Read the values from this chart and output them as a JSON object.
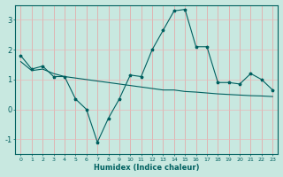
{
  "xlabel": "Humidex (Indice chaleur)",
  "ylabel": "",
  "bg_color": "#c8e8e0",
  "grid_color_v": "#e8a0a0",
  "grid_color_h": "#e8b8b8",
  "line_color": "#006060",
  "x_values": [
    0,
    1,
    2,
    3,
    4,
    5,
    6,
    7,
    8,
    9,
    10,
    11,
    12,
    13,
    14,
    15,
    16,
    17,
    18,
    19,
    20,
    21,
    22,
    23
  ],
  "line1_y": [
    1.8,
    1.35,
    1.45,
    1.1,
    1.1,
    0.35,
    0.0,
    -1.1,
    -0.3,
    0.35,
    1.15,
    1.1,
    2.0,
    2.65,
    3.3,
    3.35,
    2.1,
    2.1,
    0.9,
    0.9,
    0.85,
    1.2,
    1.0,
    0.65
  ],
  "line2_y": [
    1.6,
    1.3,
    1.35,
    1.2,
    1.1,
    1.05,
    1.0,
    0.95,
    0.9,
    0.85,
    0.8,
    0.75,
    0.7,
    0.65,
    0.65,
    0.6,
    0.58,
    0.55,
    0.52,
    0.5,
    0.48,
    0.46,
    0.45,
    0.43
  ],
  "ylim": [
    -1.5,
    3.5
  ],
  "xlim": [
    -0.5,
    23.5
  ],
  "yticks": [
    -1,
    0,
    1,
    2,
    3
  ],
  "xtick_labels": [
    "0",
    "1",
    "2",
    "3",
    "4",
    "5",
    "6",
    "7",
    "8",
    "9",
    "10",
    "11",
    "12",
    "13",
    "14",
    "15",
    "16",
    "17",
    "18",
    "19",
    "20",
    "21",
    "22",
    "23"
  ]
}
